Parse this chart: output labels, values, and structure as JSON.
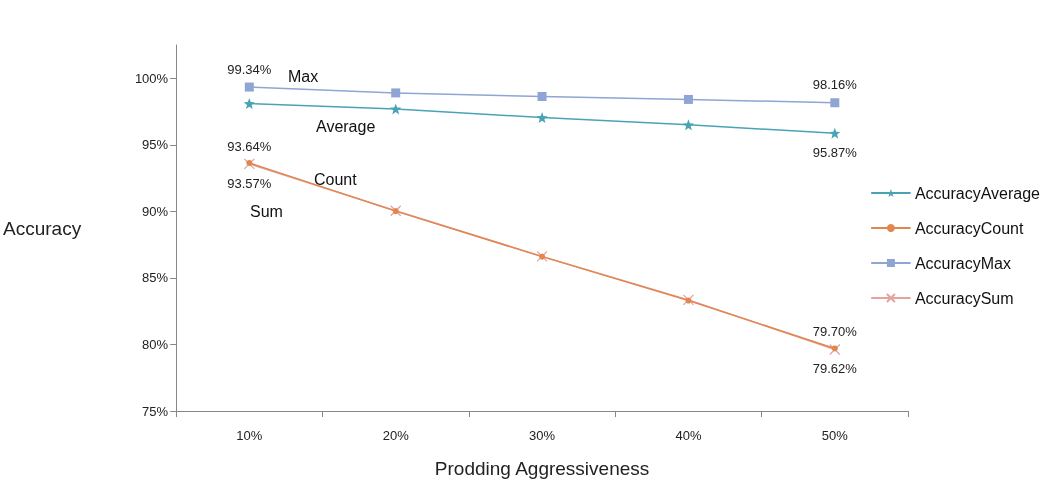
{
  "chart_data": {
    "type": "line",
    "xlabel": "Prodding Aggressiveness",
    "ylabel": "Accuracy",
    "categories": [
      "10%",
      "20%",
      "30%",
      "40%",
      "50%"
    ],
    "ylim": [
      75,
      102.5
    ],
    "yticks": [
      {
        "value": 75,
        "label": "75%"
      },
      {
        "value": 80,
        "label": "80%"
      },
      {
        "value": 85,
        "label": "85%"
      },
      {
        "value": 90,
        "label": "90%"
      },
      {
        "value": 95,
        "label": "95%"
      },
      {
        "value": 100,
        "label": "100%"
      }
    ],
    "grid": false,
    "legend": "right",
    "line_style": "solid",
    "series": [
      {
        "name": "AccuracyAverage",
        "color": "#4aa3b5",
        "marker": "star",
        "values": [
          98.1,
          97.7,
          97.05,
          96.5,
          95.87
        ],
        "value_labels": [
          null,
          null,
          null,
          null,
          "95.87%"
        ]
      },
      {
        "name": "AccuracyCount",
        "color": "#e0874f",
        "marker": "circle",
        "values": [
          93.64,
          90.02,
          86.6,
          83.3,
          79.7
        ],
        "value_labels": [
          "93.64%",
          null,
          null,
          null,
          "79.70%"
        ]
      },
      {
        "name": "AccuracyMax",
        "color": "#8fa5d3",
        "marker": "square",
        "values": [
          99.34,
          98.9,
          98.63,
          98.41,
          98.16
        ],
        "value_labels": [
          "99.34%",
          null,
          null,
          null,
          "98.16%"
        ]
      },
      {
        "name": "AccuracySum",
        "color": "#e4a3a0",
        "marker": "cross",
        "values": [
          93.57,
          90.05,
          86.62,
          83.35,
          79.62
        ],
        "value_labels": [
          "93.57%",
          null,
          null,
          null,
          "79.62%"
        ]
      }
    ],
    "annotations": [
      "Max",
      "Average",
      "Count",
      "Sum"
    ]
  }
}
